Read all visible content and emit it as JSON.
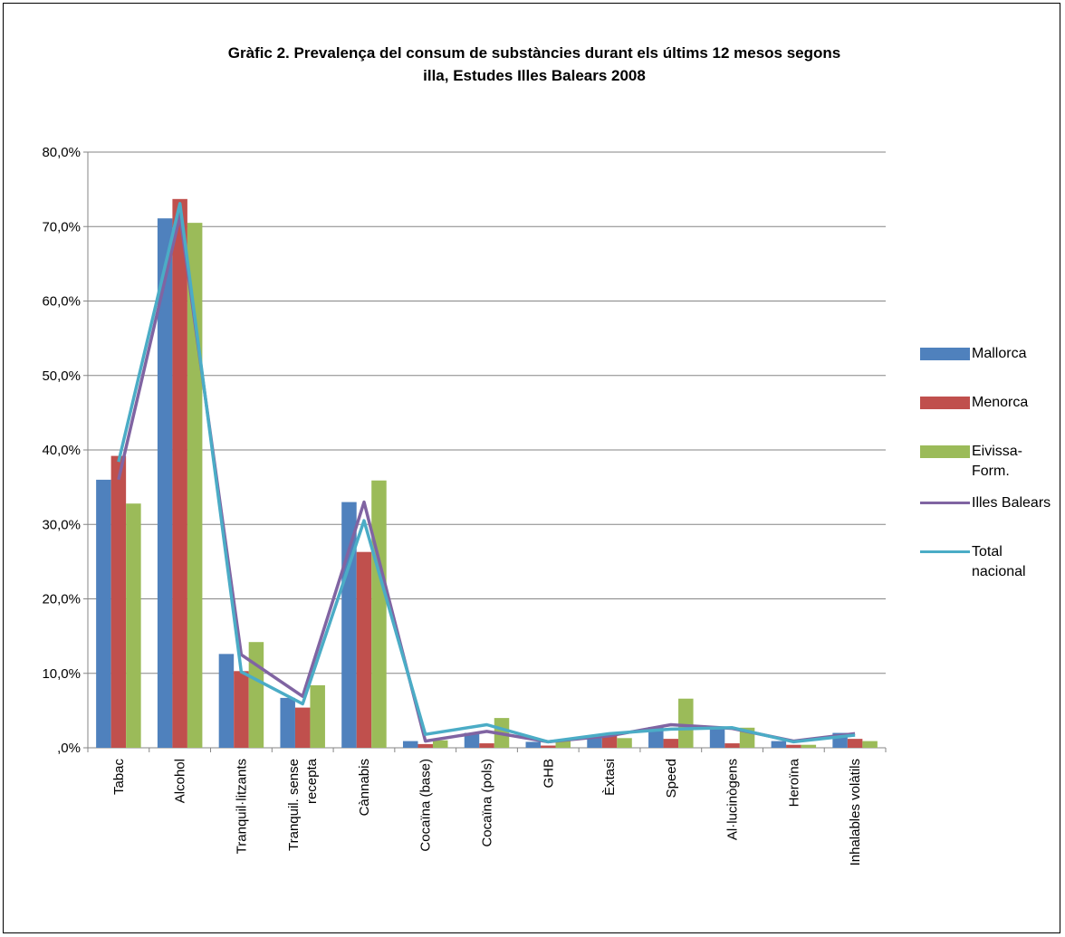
{
  "chart_data": {
    "type": "bar",
    "title_line1": "Gràfic 2. Prevalença del consum de substàncies durant els últims 12 mesos segons",
    "title_line2": "illa, Estudes Illes Balears 2008",
    "categories": [
      "Tabac",
      "Alcohol",
      "Tranquil·litzants",
      "Tranquil. sense recepta",
      "Cànnabis",
      "Cocaïna (base)",
      "Cocaïna (pols)",
      "GHB",
      "Èxtasi",
      "Speed",
      "Al·lucinògens",
      "Heroïna",
      "Inhalables volàtils"
    ],
    "category_lines": [
      [
        "Tabac"
      ],
      [
        "Alcohol"
      ],
      [
        "Tranquil·litzants"
      ],
      [
        "Tranquil. sense",
        "recepta"
      ],
      [
        "Cànnabis"
      ],
      [
        "Cocaïna (base)"
      ],
      [
        "Cocaïna (pols)"
      ],
      [
        "GHB"
      ],
      [
        "Èxtasi"
      ],
      [
        "Speed"
      ],
      [
        "Al·lucinògens"
      ],
      [
        "Heroïna"
      ],
      [
        "Inhalables volàtils"
      ]
    ],
    "bar_series": [
      {
        "name": "Mallorca",
        "color": "#4f81bd",
        "values": [
          36.0,
          71.1,
          12.6,
          6.7,
          33.0,
          0.9,
          2.0,
          0.8,
          1.5,
          2.8,
          2.7,
          0.9,
          2.0
        ]
      },
      {
        "name": "Menorca",
        "color": "#c0504d",
        "values": [
          39.2,
          73.7,
          10.3,
          5.4,
          26.3,
          0.5,
          0.6,
          0.3,
          1.7,
          1.2,
          0.6,
          0.4,
          1.2
        ]
      },
      {
        "name": "Eivissa-Form.",
        "legend_lines": [
          "Eivissa-",
          "Form."
        ],
        "color": "#9bbb59",
        "values": [
          32.8,
          70.5,
          14.2,
          8.4,
          35.9,
          1.0,
          4.0,
          0.9,
          1.3,
          6.6,
          2.7,
          0.4,
          0.9
        ]
      }
    ],
    "line_series": [
      {
        "name": "Illes Balears",
        "legend_lines": [
          "Illes Balears"
        ],
        "color": "#8064a2",
        "values": [
          36.0,
          71.5,
          12.5,
          6.9,
          33.0,
          0.9,
          2.2,
          0.8,
          1.6,
          3.1,
          2.6,
          0.9,
          1.9
        ]
      },
      {
        "name": "Total nacional",
        "legend_lines": [
          "Total",
          "nacional"
        ],
        "color": "#4bacc6",
        "values": [
          38.4,
          73.1,
          10.2,
          5.9,
          30.5,
          1.8,
          3.1,
          0.8,
          1.9,
          2.5,
          2.7,
          0.8,
          1.7
        ]
      }
    ],
    "y_ticks": [
      ",0%",
      "10,0%",
      "20,0%",
      "30,0%",
      "40,0%",
      "50,0%",
      "60,0%",
      "70,0%",
      "80,0%"
    ],
    "ylim": [
      0,
      80
    ],
    "grid": true,
    "legend_position": "right"
  }
}
